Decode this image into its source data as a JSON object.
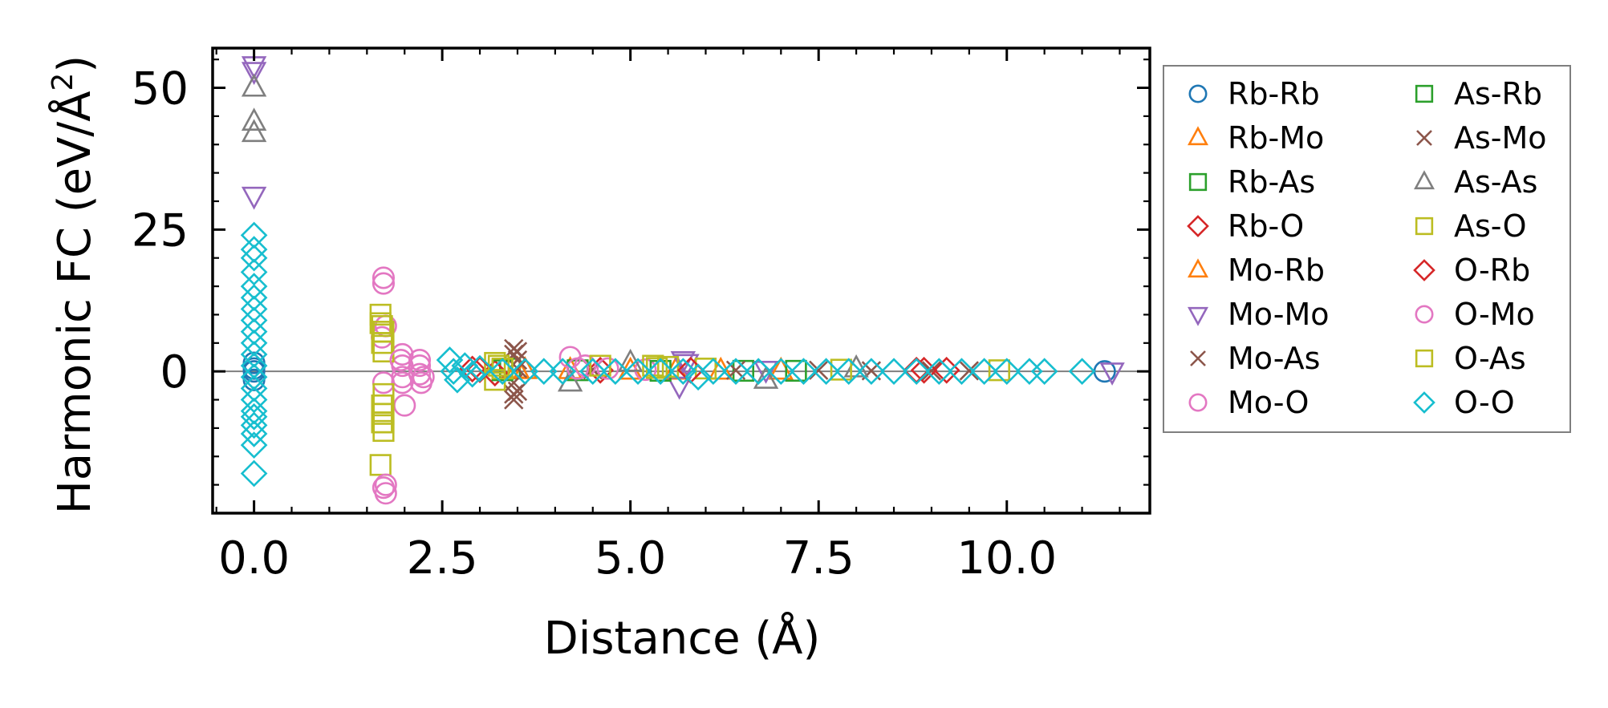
{
  "chart_data": {
    "type": "scatter",
    "xlabel": "Distance (Å)",
    "ylabel_main": "Harmonic FC (eV/Å",
    "ylabel_sup": "2",
    "ylabel_close": ")",
    "xlim": [
      -0.55,
      11.9
    ],
    "ylim": [
      -25,
      57
    ],
    "x_ticks": [
      0,
      2.5,
      5,
      7.5,
      10
    ],
    "x_tick_labels": [
      "0.0",
      "2.5",
      "5.0",
      "7.5",
      "10.0"
    ],
    "y_ticks": [
      0,
      25,
      50
    ],
    "y_tick_labels": [
      "0",
      "25",
      "50"
    ],
    "zero_line": 0,
    "legend_position": "outside-right",
    "series": [
      {
        "name": "Rb-Rb",
        "marker": "circle",
        "color": "#1f77b4",
        "points": [
          [
            0,
            0
          ],
          [
            0,
            1.5
          ],
          [
            0,
            -1.5
          ],
          [
            0,
            0.5
          ],
          [
            11.3,
            0
          ]
        ]
      },
      {
        "name": "Rb-Mo",
        "marker": "triangle-up",
        "color": "#ff7f0e",
        "points": [
          [
            3.5,
            0.3
          ],
          [
            4.2,
            0.2
          ],
          [
            5.6,
            0.1
          ],
          [
            7.0,
            0.1
          ]
        ]
      },
      {
        "name": "Rb-As",
        "marker": "square",
        "color": "#2ca02c",
        "points": [
          [
            3.4,
            0.5
          ],
          [
            4.3,
            0.2
          ],
          [
            6.5,
            0.1
          ]
        ]
      },
      {
        "name": "Rb-O",
        "marker": "diamond",
        "color": "#d62728",
        "points": [
          [
            2.9,
            0.4
          ],
          [
            3.2,
            -0.3
          ],
          [
            4.6,
            0.2
          ],
          [
            8.8,
            0.2
          ],
          [
            9.2,
            0.2
          ]
        ]
      },
      {
        "name": "Mo-Rb",
        "marker": "triangle-up",
        "color": "#ff7f0e",
        "points": [
          [
            3.6,
            0.2
          ],
          [
            5.0,
            0.1
          ],
          [
            6.2,
            0.1
          ]
        ]
      },
      {
        "name": "Mo-Mo",
        "marker": "triangle-down",
        "color": "#9467bd",
        "points": [
          [
            0,
            54
          ],
          [
            0,
            53
          ],
          [
            0,
            31
          ],
          [
            5.65,
            -2.5
          ],
          [
            5.7,
            2
          ],
          [
            5.75,
            1.5
          ],
          [
            6.8,
            0.3
          ],
          [
            11.4,
            0
          ]
        ]
      },
      {
        "name": "Mo-As",
        "marker": "x",
        "color": "#8c564b",
        "points": [
          [
            3.45,
            4
          ],
          [
            3.45,
            3
          ],
          [
            3.5,
            2
          ],
          [
            3.45,
            -2
          ],
          [
            3.5,
            -3.5
          ],
          [
            3.45,
            -5
          ],
          [
            3.5,
            0.5
          ],
          [
            4.5,
            0.3
          ],
          [
            7.5,
            0.2
          ],
          [
            8.2,
            0.1
          ],
          [
            9.5,
            0.1
          ]
        ]
      },
      {
        "name": "Mo-O",
        "marker": "circle",
        "color": "#e377c2",
        "points": [
          [
            1.72,
            16.5
          ],
          [
            1.72,
            15.5
          ],
          [
            1.75,
            8
          ],
          [
            1.7,
            6
          ],
          [
            1.72,
            -2
          ],
          [
            1.72,
            -20.5
          ],
          [
            1.75,
            -21.5
          ],
          [
            1.97,
            3
          ],
          [
            1.97,
            1
          ],
          [
            1.97,
            -1
          ],
          [
            1.97,
            -2
          ],
          [
            2.0,
            -6
          ],
          [
            2.2,
            2
          ],
          [
            2.2,
            1
          ],
          [
            2.2,
            -0.5
          ],
          [
            2.22,
            -2
          ],
          [
            4.2,
            2.5
          ],
          [
            4.4,
            1
          ],
          [
            4.7,
            0.5
          ],
          [
            5.2,
            0.3
          ]
        ]
      },
      {
        "name": "As-Rb",
        "marker": "square",
        "color": "#2ca02c",
        "points": [
          [
            3.3,
            0.2
          ],
          [
            5.4,
            0.1
          ],
          [
            7.2,
            0.1
          ]
        ]
      },
      {
        "name": "As-Mo",
        "marker": "x",
        "color": "#8c564b",
        "points": [
          [
            3.5,
            3.5
          ],
          [
            3.45,
            -4
          ],
          [
            6.4,
            0.2
          ],
          [
            9.0,
            0.1
          ]
        ]
      },
      {
        "name": "As-As",
        "marker": "triangle-up",
        "color": "#7f7f7f",
        "points": [
          [
            0,
            50
          ],
          [
            0,
            44
          ],
          [
            0,
            42
          ],
          [
            4.2,
            -2
          ],
          [
            5.0,
            1.5
          ],
          [
            6.8,
            -1.5
          ],
          [
            8.0,
            0.5
          ]
        ]
      },
      {
        "name": "As-O",
        "marker": "square",
        "color": "#bcbd22",
        "points": [
          [
            1.68,
            10
          ],
          [
            1.68,
            8.5
          ],
          [
            1.72,
            7
          ],
          [
            1.7,
            5
          ],
          [
            1.72,
            3.5
          ],
          [
            1.72,
            -4
          ],
          [
            1.7,
            -6
          ],
          [
            1.72,
            -7.5
          ],
          [
            1.7,
            -9
          ],
          [
            1.72,
            -10.5
          ],
          [
            1.68,
            -16.5
          ],
          [
            3.2,
            1.5
          ],
          [
            3.2,
            -1.5
          ],
          [
            3.3,
            0.5
          ],
          [
            4.6,
            1
          ],
          [
            5.3,
            1
          ],
          [
            5.5,
            0.8
          ],
          [
            6.0,
            0.5
          ],
          [
            7.8,
            0.3
          ],
          [
            9.9,
            0.2
          ]
        ]
      },
      {
        "name": "O-Rb",
        "marker": "diamond",
        "color": "#d62728",
        "points": [
          [
            3.0,
            0.3
          ],
          [
            5.8,
            0.2
          ],
          [
            8.9,
            0.2
          ]
        ]
      },
      {
        "name": "O-Mo",
        "marker": "circle",
        "color": "#e377c2",
        "points": [
          [
            1.75,
            -20
          ],
          [
            1.95,
            2
          ],
          [
            2.25,
            -1
          ],
          [
            4.3,
            0.5
          ]
        ]
      },
      {
        "name": "O-As",
        "marker": "square",
        "color": "#bcbd22",
        "points": [
          [
            1.7,
            8
          ],
          [
            1.72,
            -9
          ],
          [
            3.25,
            1
          ],
          [
            5.35,
            0.6
          ]
        ]
      },
      {
        "name": "O-O",
        "marker": "diamond",
        "color": "#17becf",
        "points": [
          [
            0,
            24
          ],
          [
            0,
            21.5
          ],
          [
            0,
            20
          ],
          [
            0,
            17.5
          ],
          [
            0,
            15
          ],
          [
            0,
            13
          ],
          [
            0,
            11
          ],
          [
            0,
            9
          ],
          [
            0,
            7
          ],
          [
            0,
            5
          ],
          [
            0,
            3
          ],
          [
            0,
            1
          ],
          [
            0,
            -1
          ],
          [
            0,
            -3
          ],
          [
            0,
            -5
          ],
          [
            0,
            -7
          ],
          [
            0,
            -8
          ],
          [
            0,
            -9.5
          ],
          [
            0,
            -11
          ],
          [
            0,
            -13
          ],
          [
            0,
            -18
          ],
          [
            2.6,
            2
          ],
          [
            2.65,
            0
          ],
          [
            2.7,
            -1.5
          ],
          [
            2.8,
            1
          ],
          [
            2.9,
            -0.5
          ],
          [
            3.0,
            0.5
          ],
          [
            3.3,
            0
          ],
          [
            3.6,
            0
          ],
          [
            3.85,
            0
          ],
          [
            4.1,
            0
          ],
          [
            4.5,
            0
          ],
          [
            4.8,
            0
          ],
          [
            5.1,
            0
          ],
          [
            5.4,
            0
          ],
          [
            5.7,
            0
          ],
          [
            5.9,
            -1
          ],
          [
            6.1,
            0
          ],
          [
            6.4,
            0
          ],
          [
            6.7,
            0
          ],
          [
            7.0,
            0
          ],
          [
            7.3,
            0
          ],
          [
            7.6,
            0
          ],
          [
            7.9,
            0
          ],
          [
            8.2,
            0
          ],
          [
            8.5,
            0
          ],
          [
            8.8,
            0
          ],
          [
            9.1,
            0
          ],
          [
            9.4,
            0
          ],
          [
            9.7,
            0
          ],
          [
            10.0,
            0
          ],
          [
            10.3,
            0
          ],
          [
            10.5,
            0
          ],
          [
            11.0,
            0
          ]
        ]
      }
    ]
  }
}
